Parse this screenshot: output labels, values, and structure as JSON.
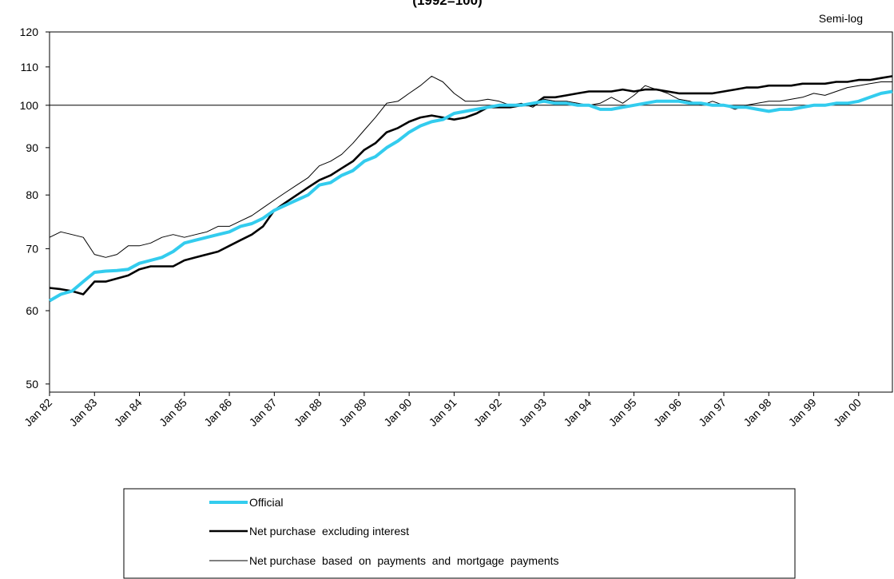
{
  "chart_data": {
    "type": "line",
    "title": "(1992=100)",
    "annotation": "Semi-log",
    "log_scale": true,
    "hline": 100,
    "xlim": [
      1982,
      2000.75
    ],
    "xticks": [
      {
        "value": 1982,
        "label": "Jan 82"
      },
      {
        "value": 1983,
        "label": "Jan 83"
      },
      {
        "value": 1984,
        "label": "Jan 84"
      },
      {
        "value": 1985,
        "label": "Jan 85"
      },
      {
        "value": 1986,
        "label": "Jan 86"
      },
      {
        "value": 1987,
        "label": "Jan 87"
      },
      {
        "value": 1988,
        "label": "Jan 88"
      },
      {
        "value": 1989,
        "label": "Jan 89"
      },
      {
        "value": 1990,
        "label": "Jan 90"
      },
      {
        "value": 1991,
        "label": "Jan 91"
      },
      {
        "value": 1992,
        "label": "Jan 92"
      },
      {
        "value": 1993,
        "label": "Jan 93"
      },
      {
        "value": 1994,
        "label": "Jan 94"
      },
      {
        "value": 1995,
        "label": "Jan 95"
      },
      {
        "value": 1996,
        "label": "Jan 96"
      },
      {
        "value": 1997,
        "label": "Jan 97"
      },
      {
        "value": 1998,
        "label": "Jan 98"
      },
      {
        "value": 1999,
        "label": "Jan 99"
      },
      {
        "value": 2000,
        "label": "Jan 00"
      }
    ],
    "ylim": [
      49,
      120
    ],
    "yticks": [
      50,
      60,
      70,
      80,
      90,
      100,
      110,
      120
    ],
    "x": [
      1982,
      1982.25,
      1982.5,
      1982.75,
      1983,
      1983.25,
      1983.5,
      1983.75,
      1984,
      1984.25,
      1984.5,
      1984.75,
      1985,
      1985.25,
      1985.5,
      1985.75,
      1986,
      1986.25,
      1986.5,
      1986.75,
      1987,
      1987.25,
      1987.5,
      1987.75,
      1988,
      1988.25,
      1988.5,
      1988.75,
      1989,
      1989.25,
      1989.5,
      1989.75,
      1990,
      1990.25,
      1990.5,
      1990.75,
      1991,
      1991.25,
      1991.5,
      1991.75,
      1992,
      1992.25,
      1992.5,
      1992.75,
      1993,
      1993.25,
      1993.5,
      1993.75,
      1994,
      1994.25,
      1994.5,
      1994.75,
      1995,
      1995.25,
      1995.5,
      1995.75,
      1996,
      1996.25,
      1996.5,
      1996.75,
      1997,
      1997.25,
      1997.5,
      1997.75,
      1998,
      1998.25,
      1998.5,
      1998.75,
      1999,
      1999.25,
      1999.5,
      1999.75,
      2000,
      2000.25,
      2000.5,
      2000.75
    ],
    "series": [
      {
        "name": "Official",
        "color": "#33ccee",
        "width": 4,
        "values": [
          61.5,
          62.5,
          63,
          64.5,
          66,
          66.2,
          66.3,
          66.5,
          67.5,
          68,
          68.5,
          69.5,
          71,
          71.5,
          72,
          72.5,
          73,
          74,
          74.5,
          75.5,
          77,
          78,
          79,
          80,
          82,
          82.5,
          84,
          85,
          87,
          88,
          90,
          91.5,
          93.5,
          95,
          96,
          96.5,
          98,
          98.5,
          99,
          99.5,
          100,
          100,
          100,
          100.5,
          101,
          100.5,
          100.5,
          100,
          100,
          99,
          99,
          99.5,
          100,
          100.5,
          101,
          101,
          101,
          100.5,
          100.5,
          100,
          100,
          99.5,
          99.5,
          99,
          98.5,
          99,
          99,
          99.5,
          100,
          100,
          100.5,
          100.5,
          101,
          102,
          103,
          103.5
        ]
      },
      {
        "name": "Net purchase  excluding interest",
        "color": "#000000",
        "width": 2.6,
        "values": [
          63.5,
          63.3,
          63,
          62.5,
          64.5,
          64.5,
          65,
          65.5,
          66.5,
          67,
          67,
          67,
          68,
          68.5,
          69,
          69.5,
          70.5,
          71.5,
          72.5,
          74,
          77,
          78.5,
          80,
          81.5,
          83,
          84,
          85.5,
          87,
          89.5,
          91,
          93.5,
          94.5,
          96,
          97,
          97.5,
          97,
          96.5,
          97,
          98,
          99.5,
          99.5,
          99.5,
          100,
          100,
          102,
          102,
          102.5,
          103,
          103.5,
          103.5,
          103.5,
          104,
          103.5,
          104,
          104,
          103.5,
          103,
          103,
          103,
          103,
          103.5,
          104,
          104.5,
          104.5,
          105,
          105,
          105,
          105.5,
          105.5,
          105.5,
          106,
          106,
          106.5,
          106.5,
          107,
          107.5
        ]
      },
      {
        "name": "Net purchase  based  on  payments  and  mortgage  payments",
        "color": "#000000",
        "width": 1,
        "values": [
          72,
          73,
          72.5,
          72,
          69,
          68.5,
          69,
          70.5,
          70.5,
          71,
          72,
          72.5,
          72,
          72.5,
          73,
          74,
          74,
          75,
          76,
          77.5,
          79,
          80.5,
          82,
          83.5,
          86,
          87,
          88.5,
          91,
          94,
          97,
          100.5,
          101,
          103,
          105,
          107.5,
          106,
          103,
          101,
          101,
          101.5,
          101,
          100,
          100.5,
          99.5,
          101.5,
          101,
          101,
          100.5,
          100,
          100.5,
          102,
          100.5,
          102.5,
          105,
          104,
          103,
          101.5,
          101,
          100,
          101,
          100,
          99,
          100,
          100.5,
          101,
          101,
          101.5,
          102,
          103,
          102.5,
          103.5,
          104.5,
          105,
          105.5,
          106,
          106
        ]
      }
    ]
  }
}
